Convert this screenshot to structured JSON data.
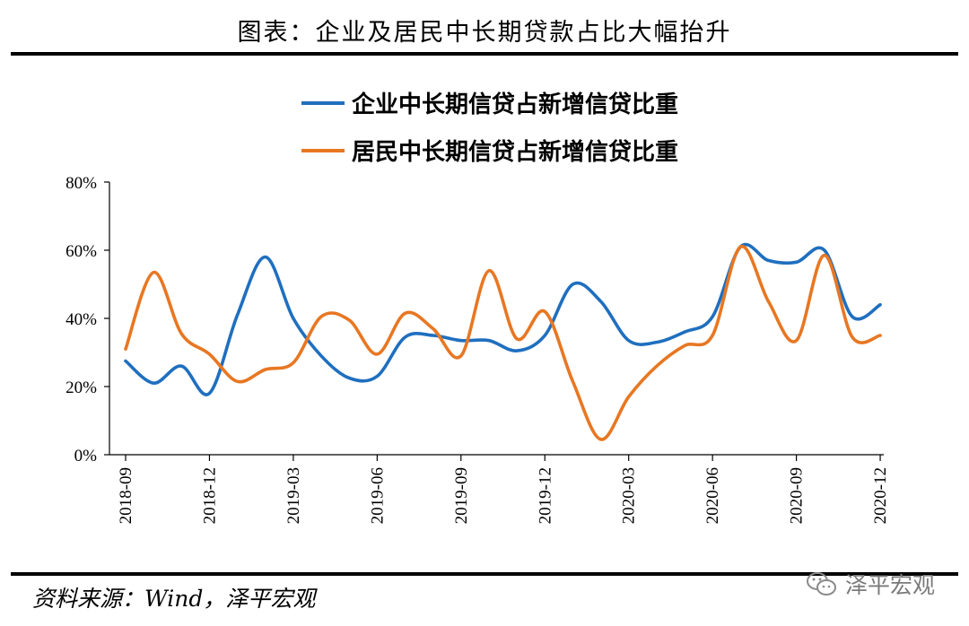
{
  "title": "图表：企业及居民中长期贷款占比大幅抬升",
  "source": "资料来源：Wind，泽平宏观",
  "watermark": "泽平宏观",
  "colors": {
    "series1": "#1f6fbf",
    "series2": "#e87722",
    "axis": "#000000"
  },
  "chart_data": {
    "type": "line",
    "ylim": [
      0,
      80
    ],
    "ytick_values": [
      0,
      20,
      40,
      60,
      80
    ],
    "ytick_labels": [
      "0%",
      "20%",
      "40%",
      "60%",
      "80%"
    ],
    "xtick_labels": [
      "2018-09",
      "2018-12",
      "2019-03",
      "2019-06",
      "2019-09",
      "2019-12",
      "2020-03",
      "2020-06",
      "2020-09",
      "2020-12"
    ],
    "x": [
      "2018-09",
      "2018-10",
      "2018-11",
      "2018-12",
      "2019-01",
      "2019-02",
      "2019-03",
      "2019-04",
      "2019-05",
      "2019-06",
      "2019-07",
      "2019-08",
      "2019-09",
      "2019-10",
      "2019-11",
      "2019-12",
      "2020-01",
      "2020-02",
      "2020-03",
      "2020-04",
      "2020-05",
      "2020-06",
      "2020-07",
      "2020-08",
      "2020-09",
      "2020-10",
      "2020-11",
      "2020-12"
    ],
    "legend_position": "top",
    "series": [
      {
        "name": "企业中长期信贷占新增信贷比重",
        "color": "#1f6fbf",
        "values": [
          27.5,
          21,
          26,
          18,
          41,
          58,
          40,
          29,
          22.5,
          23,
          34.5,
          35,
          33.5,
          33.5,
          30.5,
          35,
          50,
          45,
          33.5,
          33,
          36,
          40.5,
          61,
          57,
          56.5,
          60,
          40.5,
          44
        ]
      },
      {
        "name": "居民中长期信贷占新增信贷比重",
        "color": "#e87722",
        "values": [
          31,
          53.5,
          35.5,
          29.5,
          21.5,
          25,
          27,
          40.5,
          39.5,
          29.5,
          41.5,
          37,
          29,
          54,
          34,
          42,
          21.5,
          4.5,
          17,
          26,
          32,
          35,
          61,
          45,
          33.5,
          58.5,
          34.5,
          35
        ]
      }
    ]
  }
}
